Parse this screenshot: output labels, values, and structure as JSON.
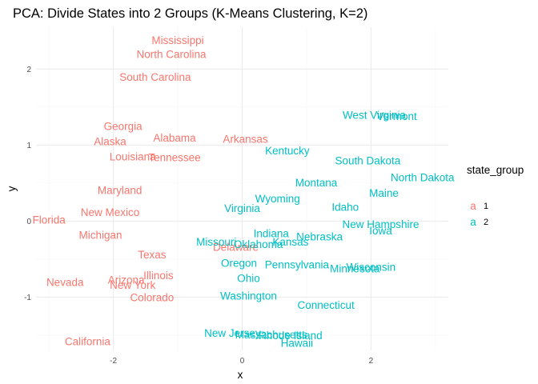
{
  "chart_data": {
    "type": "scatter",
    "title": "PCA: Divide States into 2 Groups (K-Means Clustering, K=2)",
    "xlabel": "x",
    "ylabel": "y",
    "xlim": [
      -3.2,
      3.2
    ],
    "ylim": [
      -1.7,
      2.55
    ],
    "x_ticks": [
      -2,
      0,
      2
    ],
    "x_tick_labels": [
      "-2",
      "0",
      "2"
    ],
    "y_ticks": [
      -1,
      0,
      1,
      2
    ],
    "y_tick_labels": [
      "-1",
      "0",
      "1",
      "2"
    ],
    "grid": true,
    "legend_placement": "right",
    "legend": {
      "title": "state_group",
      "key_glyph": "a",
      "items": [
        {
          "group": "1",
          "label": "1",
          "color": "#F8766D"
        },
        {
          "group": "2",
          "label": "2",
          "color": "#00BFC4"
        }
      ]
    },
    "points": [
      {
        "label": "Mississippi",
        "x": -1.0,
        "y": 2.38,
        "group": "1"
      },
      {
        "label": "North Carolina",
        "x": -1.1,
        "y": 2.2,
        "group": "1"
      },
      {
        "label": "South Carolina",
        "x": -1.35,
        "y": 1.9,
        "group": "1"
      },
      {
        "label": "Georgia",
        "x": -1.85,
        "y": 1.25,
        "group": "1"
      },
      {
        "label": "Alabama",
        "x": -1.05,
        "y": 1.1,
        "group": "1"
      },
      {
        "label": "Alaska",
        "x": -2.05,
        "y": 1.05,
        "group": "1"
      },
      {
        "label": "Arkansas",
        "x": 0.05,
        "y": 1.08,
        "group": "1"
      },
      {
        "label": "Louisiana",
        "x": -1.7,
        "y": 0.85,
        "group": "1"
      },
      {
        "label": "Tennessee",
        "x": -1.05,
        "y": 0.84,
        "group": "1"
      },
      {
        "label": "Maryland",
        "x": -1.9,
        "y": 0.41,
        "group": "1"
      },
      {
        "label": "New Mexico",
        "x": -2.05,
        "y": 0.12,
        "group": "1"
      },
      {
        "label": "Florida",
        "x": -3.0,
        "y": 0.02,
        "group": "1"
      },
      {
        "label": "Michigan",
        "x": -2.2,
        "y": -0.18,
        "group": "1"
      },
      {
        "label": "Delaware",
        "x": -0.1,
        "y": -0.34,
        "group": "1"
      },
      {
        "label": "Texas",
        "x": -1.4,
        "y": -0.44,
        "group": "1"
      },
      {
        "label": "Illinois",
        "x": -1.3,
        "y": -0.71,
        "group": "1"
      },
      {
        "label": "Arizona",
        "x": -1.8,
        "y": -0.77,
        "group": "1"
      },
      {
        "label": "Nevada",
        "x": -2.75,
        "y": -0.8,
        "group": "1"
      },
      {
        "label": "New York",
        "x": -1.7,
        "y": -0.84,
        "group": "1"
      },
      {
        "label": "Colorado",
        "x": -1.4,
        "y": -1.0,
        "group": "1"
      },
      {
        "label": "California",
        "x": -2.4,
        "y": -1.58,
        "group": "1"
      },
      {
        "label": "West Virginia",
        "x": 2.05,
        "y": 1.4,
        "group": "2"
      },
      {
        "label": "Vermont",
        "x": 2.4,
        "y": 1.38,
        "group": "2"
      },
      {
        "label": "Kentucky",
        "x": 0.7,
        "y": 0.93,
        "group": "2"
      },
      {
        "label": "South Dakota",
        "x": 1.95,
        "y": 0.8,
        "group": "2"
      },
      {
        "label": "North Dakota",
        "x": 2.8,
        "y": 0.58,
        "group": "2"
      },
      {
        "label": "Montana",
        "x": 1.15,
        "y": 0.51,
        "group": "2"
      },
      {
        "label": "Maine",
        "x": 2.2,
        "y": 0.37,
        "group": "2"
      },
      {
        "label": "Wyoming",
        "x": 0.55,
        "y": 0.3,
        "group": "2"
      },
      {
        "label": "Virginia",
        "x": 0.0,
        "y": 0.17,
        "group": "2"
      },
      {
        "label": "Idaho",
        "x": 1.6,
        "y": 0.19,
        "group": "2"
      },
      {
        "label": "New Hampshire",
        "x": 2.15,
        "y": -0.04,
        "group": "2"
      },
      {
        "label": "Iowa",
        "x": 2.15,
        "y": -0.12,
        "group": "2"
      },
      {
        "label": "Indiana",
        "x": 0.45,
        "y": -0.16,
        "group": "2"
      },
      {
        "label": "Nebraska",
        "x": 1.2,
        "y": -0.2,
        "group": "2"
      },
      {
        "label": "Kansas",
        "x": 0.75,
        "y": -0.27,
        "group": "2"
      },
      {
        "label": "Missouri",
        "x": -0.4,
        "y": -0.27,
        "group": "2"
      },
      {
        "label": "Oklahoma",
        "x": 0.25,
        "y": -0.3,
        "group": "2"
      },
      {
        "label": "Oregon",
        "x": -0.05,
        "y": -0.55,
        "group": "2"
      },
      {
        "label": "Pennsylvania",
        "x": 0.85,
        "y": -0.57,
        "group": "2"
      },
      {
        "label": "Minnesota",
        "x": 1.75,
        "y": -0.62,
        "group": "2"
      },
      {
        "label": "Wisconsin",
        "x": 2.0,
        "y": -0.6,
        "group": "2"
      },
      {
        "label": "Ohio",
        "x": 0.1,
        "y": -0.75,
        "group": "2"
      },
      {
        "label": "Washington",
        "x": 0.1,
        "y": -0.98,
        "group": "2"
      },
      {
        "label": "Connecticut",
        "x": 1.3,
        "y": -1.1,
        "group": "2"
      },
      {
        "label": "New Jersey",
        "x": -0.15,
        "y": -1.47,
        "group": "2"
      },
      {
        "label": "Massachusetts",
        "x": 0.45,
        "y": -1.49,
        "group": "2"
      },
      {
        "label": "Rhode Island",
        "x": 0.75,
        "y": -1.5,
        "group": "2"
      },
      {
        "label": "Hawaii",
        "x": 0.85,
        "y": -1.6,
        "group": "2"
      }
    ]
  }
}
